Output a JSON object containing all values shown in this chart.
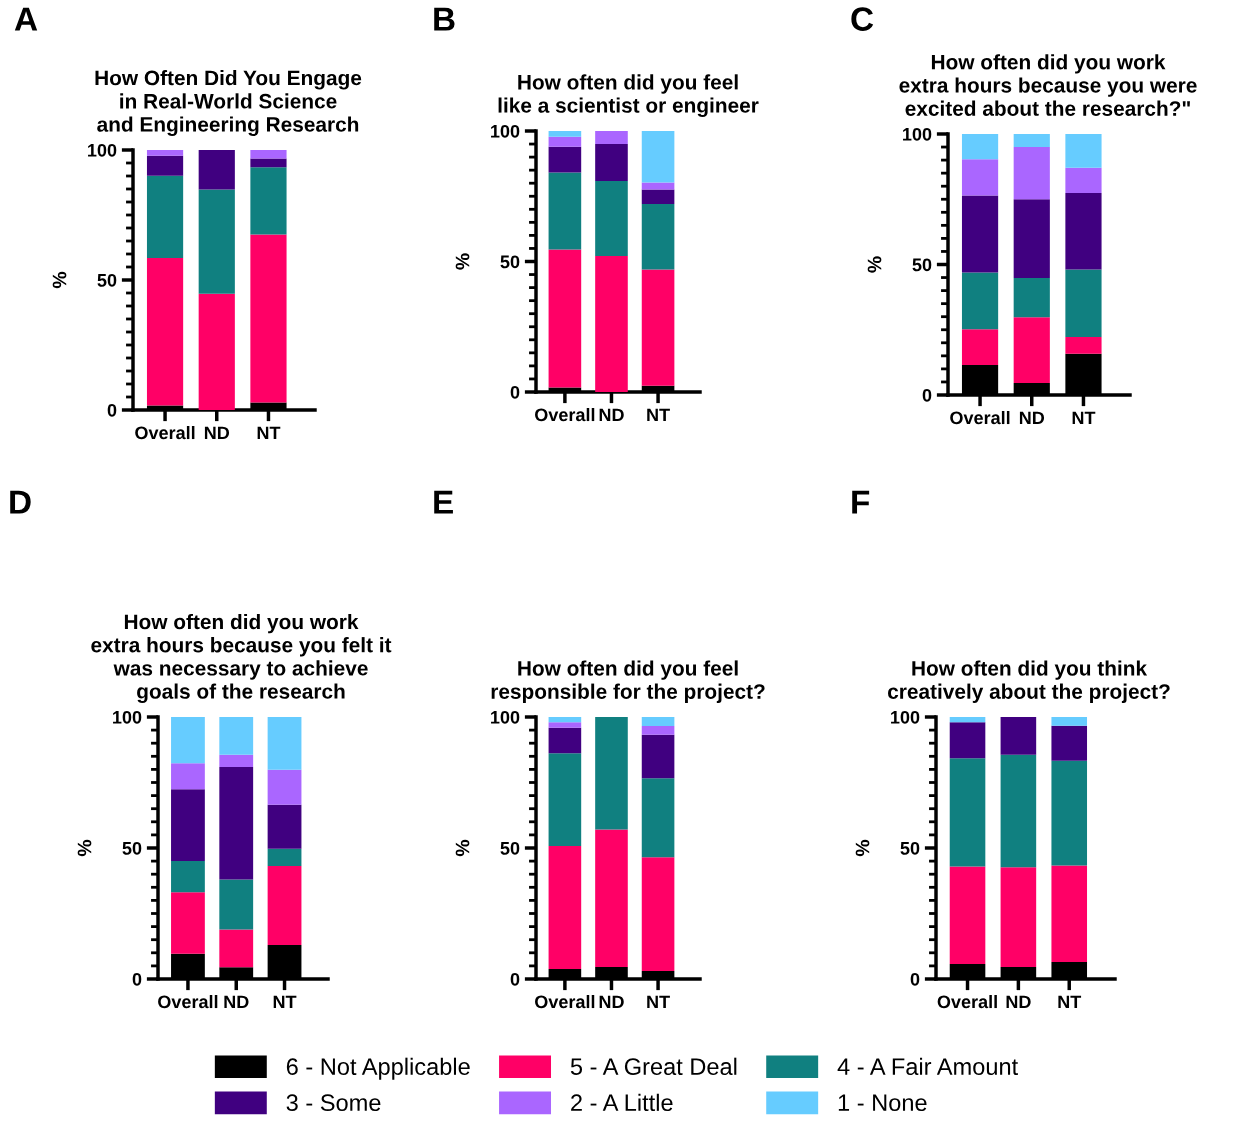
{
  "chart_data": [
    {
      "type": "bar",
      "stacked": true,
      "title": "How Often Did You Engage\nin Real-World Science\nand Engineering Research",
      "ylabel": "%",
      "annotations": [
        "A"
      ],
      "categories": [
        "Overall",
        "ND",
        "NT"
      ],
      "ylim": [
        0,
        100
      ],
      "yticks": [
        0,
        {
          "value": 5,
          "label": null
        },
        {
          "value": 10,
          "label": null
        },
        {
          "value": 15,
          "label": null
        },
        {
          "value": 20,
          "label": null
        },
        {
          "value": 25,
          "label": null
        },
        {
          "value": 30,
          "label": null
        },
        {
          "value": 35,
          "label": null
        },
        {
          "value": 40,
          "label": null
        },
        {
          "value": 45,
          "label": null
        },
        50,
        {
          "value": 55,
          "label": null
        },
        {
          "value": 60,
          "label": null
        },
        {
          "value": 65,
          "label": null
        },
        {
          "value": 70,
          "label": null
        },
        {
          "value": 75,
          "label": null
        },
        {
          "value": 80,
          "label": null
        },
        {
          "value": 85,
          "label": null
        },
        {
          "value": 90,
          "label": null
        },
        {
          "value": 95,
          "label": null
        },
        100
      ],
      "legend": "bottom",
      "grid": false,
      "series": [
        {
          "name": "6 - Not Applicable",
          "color": "#000000",
          "values": [
            1.7,
            0,
            2.9
          ]
        },
        {
          "name": "5 - A Great Deal",
          "color": "#ff0066",
          "values": [
            56.8,
            44.7,
            64.6
          ]
        },
        {
          "name": "4 - A Fair Amount",
          "color": "#108080",
          "values": [
            31.6,
            40.1,
            25.9
          ]
        },
        {
          "name": "3 - Some",
          "color": "#400080",
          "values": [
            7.7,
            15.2,
            3.3
          ]
        },
        {
          "name": "2 - A Little",
          "color": "#aa66ff",
          "values": [
            2.2,
            0,
            3.3
          ]
        },
        {
          "name": "1 - None",
          "color": "#66ccff",
          "values": [
            0,
            0,
            0
          ]
        }
      ]
    },
    {
      "type": "bar",
      "stacked": true,
      "title": "How often did you feel\nlike a scientist or engineer",
      "ylabel": "%",
      "annotations": [
        "B"
      ],
      "categories": [
        "Overall",
        "ND",
        "NT"
      ],
      "ylim": [
        0,
        100
      ],
      "yticks": [
        0,
        {
          "value": 5,
          "label": null
        },
        {
          "value": 10,
          "label": null
        },
        {
          "value": 15,
          "label": null
        },
        {
          "value": 20,
          "label": null
        },
        {
          "value": 25,
          "label": null
        },
        {
          "value": 30,
          "label": null
        },
        {
          "value": 35,
          "label": null
        },
        {
          "value": 40,
          "label": null
        },
        {
          "value": 45,
          "label": null
        },
        50,
        {
          "value": 55,
          "label": null
        },
        {
          "value": 60,
          "label": null
        },
        {
          "value": 65,
          "label": null
        },
        {
          "value": 70,
          "label": null
        },
        {
          "value": 75,
          "label": null
        },
        {
          "value": 80,
          "label": null
        },
        {
          "value": 85,
          "label": null
        },
        {
          "value": 90,
          "label": null
        },
        {
          "value": 95,
          "label": null
        },
        100
      ],
      "grid": false,
      "series": [
        {
          "color": "#000000",
          "values": [
            1.7,
            0,
            2.4
          ]
        },
        {
          "color": "#ff0066",
          "values": [
            52.9,
            52.1,
            44.5
          ]
        },
        {
          "color": "#108080",
          "values": [
            29.5,
            28.7,
            25.1
          ]
        },
        {
          "color": "#400080",
          "values": [
            9.9,
            14.2,
            5.6
          ]
        },
        {
          "color": "#aa66ff",
          "values": [
            3.8,
            5.0,
            2.7
          ]
        },
        {
          "color": "#66ccff",
          "values": [
            2.2,
            0,
            19.7
          ]
        }
      ]
    },
    {
      "type": "bar",
      "stacked": true,
      "title": "How often did you work\nextra hours because you were\nexcited about the research?\"",
      "ylabel": "%",
      "annotations": [
        "C"
      ],
      "categories": [
        "Overall",
        "ND",
        "NT"
      ],
      "ylim": [
        0,
        100
      ],
      "yticks": [
        0,
        {
          "value": 5,
          "label": null
        },
        {
          "value": 10,
          "label": null
        },
        {
          "value": 15,
          "label": null
        },
        {
          "value": 20,
          "label": null
        },
        {
          "value": 25,
          "label": null
        },
        {
          "value": 30,
          "label": null
        },
        {
          "value": 35,
          "label": null
        },
        {
          "value": 40,
          "label": null
        },
        {
          "value": 45,
          "label": null
        },
        50,
        {
          "value": 55,
          "label": null
        },
        {
          "value": 60,
          "label": null
        },
        {
          "value": 65,
          "label": null
        },
        {
          "value": 70,
          "label": null
        },
        {
          "value": 75,
          "label": null
        },
        {
          "value": 80,
          "label": null
        },
        {
          "value": 85,
          "label": null
        },
        {
          "value": 90,
          "label": null
        },
        {
          "value": 95,
          "label": null
        },
        100
      ],
      "grid": false,
      "series": [
        {
          "color": "#000000",
          "values": [
            11.5,
            4.6,
            15.8
          ]
        },
        {
          "color": "#ff0066",
          "values": [
            13.7,
            25.2,
            6.4
          ]
        },
        {
          "color": "#108080",
          "values": [
            21.7,
            15.0,
            25.9
          ]
        },
        {
          "color": "#400080",
          "values": [
            29.5,
            30.2,
            29.3
          ]
        },
        {
          "color": "#aa66ff",
          "values": [
            13.9,
            20.0,
            9.7
          ]
        },
        {
          "color": "#66ccff",
          "values": [
            9.7,
            5.0,
            12.9
          ]
        }
      ]
    },
    {
      "type": "bar",
      "stacked": true,
      "title": "How often did you work\nextra hours because you felt it\nwas necessary to achieve\ngoals of the research",
      "ylabel": "%",
      "annotations": [
        "D"
      ],
      "categories": [
        "Overall",
        "ND",
        "NT"
      ],
      "ylim": [
        0,
        100
      ],
      "yticks": [
        0,
        {
          "value": 5,
          "label": null
        },
        {
          "value": 10,
          "label": null
        },
        {
          "value": 15,
          "label": null
        },
        {
          "value": 20,
          "label": null
        },
        {
          "value": 25,
          "label": null
        },
        {
          "value": 30,
          "label": null
        },
        {
          "value": 35,
          "label": null
        },
        {
          "value": 40,
          "label": null
        },
        {
          "value": 45,
          "label": null
        },
        50,
        {
          "value": 55,
          "label": null
        },
        {
          "value": 60,
          "label": null
        },
        {
          "value": 65,
          "label": null
        },
        {
          "value": 70,
          "label": null
        },
        {
          "value": 75,
          "label": null
        },
        {
          "value": 80,
          "label": null
        },
        {
          "value": 85,
          "label": null
        },
        {
          "value": 90,
          "label": null
        },
        {
          "value": 95,
          "label": null
        },
        100
      ],
      "grid": false,
      "series": [
        {
          "color": "#000000",
          "values": [
            9.6,
            4.5,
            13.0
          ]
        },
        {
          "color": "#ff0066",
          "values": [
            23.5,
            14.4,
            30.1
          ]
        },
        {
          "color": "#108080",
          "values": [
            11.9,
            19.1,
            6.6
          ]
        },
        {
          "color": "#400080",
          "values": [
            27.4,
            42.9,
            16.8
          ]
        },
        {
          "color": "#aa66ff",
          "values": [
            9.9,
            4.7,
            13.4
          ]
        },
        {
          "color": "#66ccff",
          "values": [
            17.7,
            14.4,
            20.1
          ]
        }
      ]
    },
    {
      "type": "bar",
      "stacked": true,
      "title": "How often did you feel\nresponsible for the project?",
      "ylabel": "%",
      "annotations": [
        "E"
      ],
      "categories": [
        "Overall",
        "ND",
        "NT"
      ],
      "ylim": [
        0,
        100
      ],
      "yticks": [
        0,
        {
          "value": 5,
          "label": null
        },
        {
          "value": 10,
          "label": null
        },
        {
          "value": 15,
          "label": null
        },
        {
          "value": 20,
          "label": null
        },
        {
          "value": 25,
          "label": null
        },
        {
          "value": 30,
          "label": null
        },
        {
          "value": 35,
          "label": null
        },
        {
          "value": 40,
          "label": null
        },
        {
          "value": 45,
          "label": null
        },
        50,
        {
          "value": 55,
          "label": null
        },
        {
          "value": 60,
          "label": null
        },
        {
          "value": 65,
          "label": null
        },
        {
          "value": 70,
          "label": null
        },
        {
          "value": 75,
          "label": null
        },
        {
          "value": 80,
          "label": null
        },
        {
          "value": 85,
          "label": null
        },
        {
          "value": 90,
          "label": null
        },
        {
          "value": 95,
          "label": null
        },
        100
      ],
      "grid": false,
      "series": [
        {
          "color": "#000000",
          "values": [
            3.8,
            4.6,
            3.1
          ]
        },
        {
          "color": "#ff0066",
          "values": [
            47.0,
            52.5,
            43.4
          ]
        },
        {
          "color": "#108080",
          "values": [
            35.4,
            42.9,
            30.1
          ]
        },
        {
          "color": "#400080",
          "values": [
            9.7,
            0,
            16.6
          ]
        },
        {
          "color": "#aa66ff",
          "values": [
            2.1,
            0,
            3.4
          ]
        },
        {
          "color": "#66ccff",
          "values": [
            2.0,
            0,
            3.4
          ]
        }
      ]
    },
    {
      "type": "bar",
      "stacked": true,
      "title": "How often did you think\ncreatively about the project?",
      "ylabel": "%",
      "annotations": [
        "F"
      ],
      "categories": [
        "Overall",
        "ND",
        "NT"
      ],
      "ylim": [
        0,
        100
      ],
      "yticks": [
        0,
        {
          "value": 5,
          "label": null
        },
        {
          "value": 10,
          "label": null
        },
        {
          "value": 15,
          "label": null
        },
        {
          "value": 20,
          "label": null
        },
        {
          "value": 25,
          "label": null
        },
        {
          "value": 30,
          "label": null
        },
        {
          "value": 35,
          "label": null
        },
        {
          "value": 40,
          "label": null
        },
        {
          "value": 45,
          "label": null
        },
        50,
        {
          "value": 55,
          "label": null
        },
        {
          "value": 60,
          "label": null
        },
        {
          "value": 65,
          "label": null
        },
        {
          "value": 70,
          "label": null
        },
        {
          "value": 75,
          "label": null
        },
        {
          "value": 80,
          "label": null
        },
        {
          "value": 85,
          "label": null
        },
        {
          "value": 90,
          "label": null
        },
        {
          "value": 95,
          "label": null
        },
        100
      ],
      "grid": false,
      "series": [
        {
          "color": "#000000",
          "values": [
            5.7,
            4.6,
            6.5
          ]
        },
        {
          "color": "#ff0066",
          "values": [
            37.2,
            38.1,
            36.8
          ]
        },
        {
          "color": "#108080",
          "values": [
            41.4,
            42.9,
            40.0
          ]
        },
        {
          "color": "#400080",
          "values": [
            13.7,
            14.4,
            13.4
          ]
        },
        {
          "color": "#aa66ff",
          "values": [
            0,
            0,
            0
          ]
        },
        {
          "color": "#66ccff",
          "values": [
            2.0,
            0,
            3.3
          ]
        }
      ]
    }
  ]
}
